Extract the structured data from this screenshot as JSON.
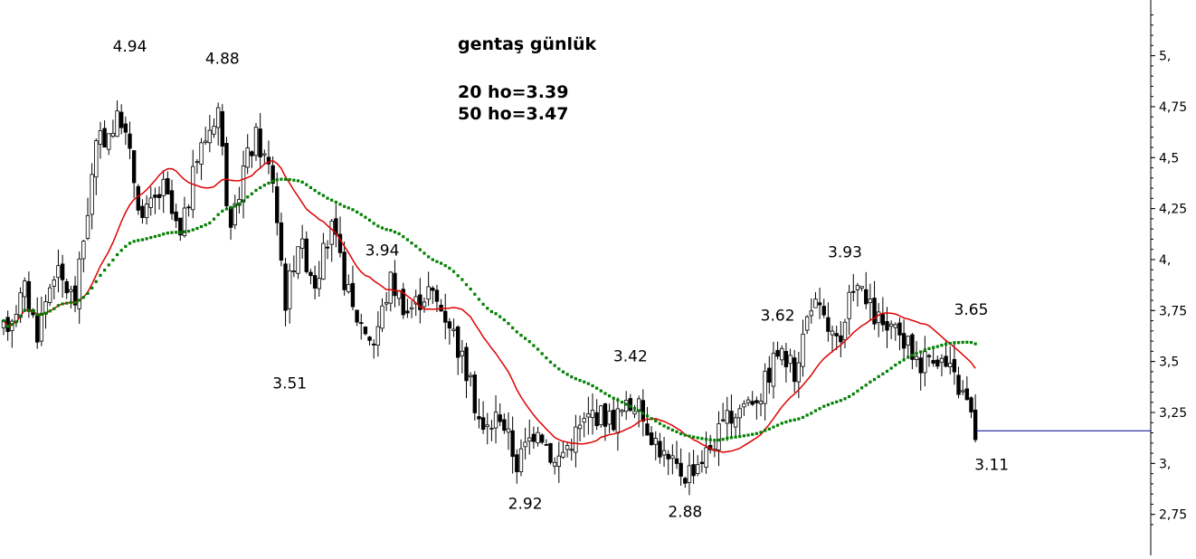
{
  "chart_data": {
    "type": "candlestick",
    "title": "gentaş günlük",
    "notes": [
      "20 ho=3.39",
      "50 ho=3.47"
    ],
    "y_ticks": [
      {
        "value": 5.0,
        "label": "5,"
      },
      {
        "value": 4.75,
        "label": "4,75"
      },
      {
        "value": 4.5,
        "label": "4,5"
      },
      {
        "value": 4.25,
        "label": "4,25"
      },
      {
        "value": 4.0,
        "label": "4,"
      },
      {
        "value": 3.75,
        "label": "3,75"
      },
      {
        "value": 3.5,
        "label": "3,5"
      },
      {
        "value": 3.25,
        "label": "3,25"
      },
      {
        "value": 3.0,
        "label": "3,"
      },
      {
        "value": 2.75,
        "label": "2,75"
      }
    ],
    "ylim": [
      2.62,
      5.22
    ],
    "grid": false,
    "price_anchors": [
      [
        0,
        3.65
      ],
      [
        5,
        3.85
      ],
      [
        8,
        3.65
      ],
      [
        12,
        3.95
      ],
      [
        17,
        3.8
      ],
      [
        22,
        4.55
      ],
      [
        28,
        4.7
      ],
      [
        33,
        4.2
      ],
      [
        38,
        4.35
      ],
      [
        42,
        4.1
      ],
      [
        46,
        4.5
      ],
      [
        51,
        4.75
      ],
      [
        54,
        4.1
      ],
      [
        57,
        4.45
      ],
      [
        60,
        4.6
      ],
      [
        64,
        4.4
      ],
      [
        67,
        3.8
      ],
      [
        70,
        4.1
      ],
      [
        74,
        3.9
      ],
      [
        78,
        4.15
      ],
      [
        83,
        3.75
      ],
      [
        88,
        3.6
      ],
      [
        92,
        3.9
      ],
      [
        96,
        3.75
      ],
      [
        101,
        3.85
      ],
      [
        106,
        3.7
      ],
      [
        110,
        3.45
      ],
      [
        114,
        3.15
      ],
      [
        118,
        3.25
      ],
      [
        122,
        3.0
      ],
      [
        127,
        3.2
      ],
      [
        131,
        3.0
      ],
      [
        136,
        3.15
      ],
      [
        140,
        3.25
      ],
      [
        145,
        3.22
      ],
      [
        150,
        3.3
      ],
      [
        154,
        3.15
      ],
      [
        158,
        3.0
      ],
      [
        162,
        2.95
      ],
      [
        167,
        3.05
      ],
      [
        171,
        3.18
      ],
      [
        176,
        3.3
      ],
      [
        180,
        3.35
      ],
      [
        184,
        3.55
      ],
      [
        188,
        3.45
      ],
      [
        192,
        3.8
      ],
      [
        195,
        3.7
      ],
      [
        199,
        3.55
      ],
      [
        202,
        3.9
      ],
      [
        206,
        3.75
      ],
      [
        210,
        3.65
      ],
      [
        214,
        3.6
      ],
      [
        218,
        3.5
      ],
      [
        221,
        3.55
      ],
      [
        225,
        3.45
      ],
      [
        229,
        3.3
      ],
      [
        231,
        3.15
      ]
    ],
    "num_bars": 232,
    "ma_series": [
      {
        "name": "20 ho",
        "color": "#e00000",
        "last": 3.39
      },
      {
        "name": "50 ho",
        "color": "#008000",
        "last": 3.47
      }
    ],
    "annotations": [
      {
        "label": "4.94",
        "bar": 30,
        "value": 4.94,
        "pos": "above"
      },
      {
        "label": "4.88",
        "bar": 52,
        "value": 4.88,
        "pos": "above"
      },
      {
        "label": "3.51",
        "bar": 68,
        "value": 3.51,
        "pos": "below"
      },
      {
        "label": "3.94",
        "bar": 90,
        "value": 3.94,
        "pos": "above"
      },
      {
        "label": "2.92",
        "bar": 124,
        "value": 2.92,
        "pos": "below"
      },
      {
        "label": "3.42",
        "bar": 149,
        "value": 3.42,
        "pos": "above"
      },
      {
        "label": "2.88",
        "bar": 162,
        "value": 2.88,
        "pos": "below"
      },
      {
        "label": "3.62",
        "bar": 184,
        "value": 3.62,
        "pos": "above"
      },
      {
        "label": "3.93",
        "bar": 200,
        "value": 3.93,
        "pos": "above"
      },
      {
        "label": "3.65",
        "bar": 230,
        "value": 3.65,
        "pos": "above"
      },
      {
        "label": "3.11",
        "bar": 240,
        "value": 3.11,
        "pos": "below"
      }
    ],
    "last_price": 3.16,
    "last_price_line_color": "#00008b",
    "legend": "none"
  }
}
